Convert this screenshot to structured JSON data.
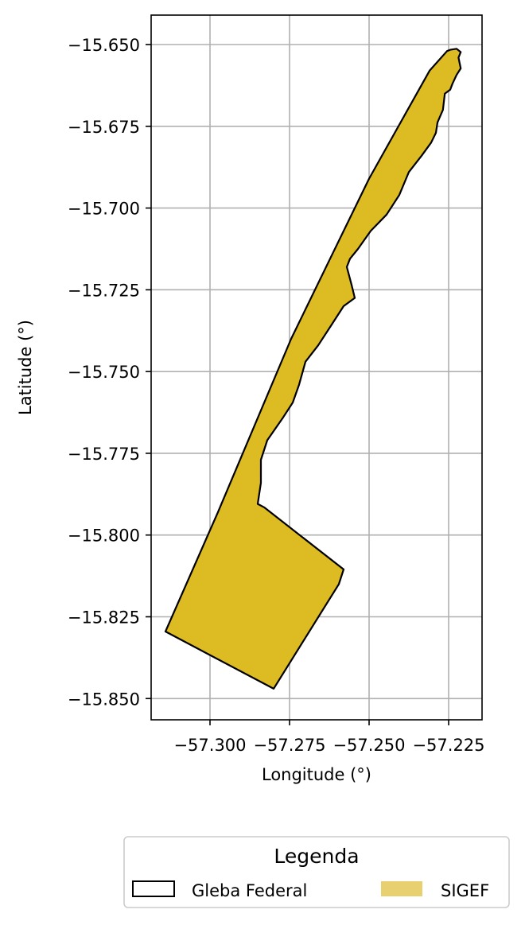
{
  "chart_data": {
    "type": "map",
    "xlabel": "Longitude (°)",
    "ylabel": "Latitude (°)",
    "xlim": [
      -57.3185,
      -57.2145
    ],
    "ylim": [
      -15.8565,
      -15.641
    ],
    "grid": true,
    "x_ticks": [
      {
        "value": -57.3,
        "label": "−57.300"
      },
      {
        "value": -57.275,
        "label": "−57.275"
      },
      {
        "value": -57.25,
        "label": "−57.250"
      },
      {
        "value": -57.225,
        "label": "−57.225"
      }
    ],
    "y_ticks": [
      {
        "value": -15.65,
        "label": "−15.650"
      },
      {
        "value": -15.675,
        "label": "−15.675"
      },
      {
        "value": -15.7,
        "label": "−15.700"
      },
      {
        "value": -15.725,
        "label": "−15.725"
      },
      {
        "value": -15.75,
        "label": "−15.750"
      },
      {
        "value": -15.775,
        "label": "−15.775"
      },
      {
        "value": -15.8,
        "label": "−15.800"
      },
      {
        "value": -15.825,
        "label": "−15.825"
      },
      {
        "value": -15.85,
        "label": "−15.850"
      }
    ],
    "layers": [
      {
        "name": "SIGEF",
        "type": "polygon",
        "fill": "#ddbb22",
        "stroke": "#000000",
        "coordinates": [
          [
            -57.2245,
            -15.6516
          ],
          [
            -57.2225,
            -15.6513
          ],
          [
            -57.2212,
            -15.6523
          ],
          [
            -57.2219,
            -15.654
          ],
          [
            -57.2212,
            -15.6573
          ],
          [
            -57.2225,
            -15.6593
          ],
          [
            -57.2238,
            -15.662
          ],
          [
            -57.2245,
            -15.6638
          ],
          [
            -57.2262,
            -15.665
          ],
          [
            -57.2268,
            -15.67
          ],
          [
            -57.2285,
            -15.6738
          ],
          [
            -57.229,
            -15.677
          ],
          [
            -57.2305,
            -15.68
          ],
          [
            -57.2335,
            -15.684
          ],
          [
            -57.2375,
            -15.689
          ],
          [
            -57.2405,
            -15.696
          ],
          [
            -57.2445,
            -15.702
          ],
          [
            -57.2495,
            -15.707
          ],
          [
            -57.2535,
            -15.7125
          ],
          [
            -57.256,
            -15.7155
          ],
          [
            -57.257,
            -15.718
          ],
          [
            -57.2555,
            -15.7235
          ],
          [
            -57.2545,
            -15.7275
          ],
          [
            -57.258,
            -15.73
          ],
          [
            -57.262,
            -15.736
          ],
          [
            -57.266,
            -15.742
          ],
          [
            -57.27,
            -15.747
          ],
          [
            -57.272,
            -15.754
          ],
          [
            -57.274,
            -15.7595
          ],
          [
            -57.277,
            -15.764
          ],
          [
            -57.282,
            -15.771
          ],
          [
            -57.284,
            -15.777
          ],
          [
            -57.284,
            -15.784
          ],
          [
            -57.285,
            -15.7905
          ],
          [
            -57.283,
            -15.7915
          ],
          [
            -57.258,
            -15.8105
          ],
          [
            -57.2595,
            -15.815
          ],
          [
            -57.28,
            -15.847
          ],
          [
            -57.314,
            -15.8295
          ],
          [
            -57.2975,
            -15.793
          ],
          [
            -57.2745,
            -15.74
          ],
          [
            -57.262,
            -15.715
          ],
          [
            -57.25,
            -15.691
          ],
          [
            -57.231,
            -15.658
          ],
          [
            -57.2255,
            -15.652
          ]
        ]
      },
      {
        "name": "Gleba Federal",
        "type": "polygon-outline",
        "stroke": "#000000"
      }
    ],
    "legend": {
      "title": "Legenda",
      "placement": "bottom-center",
      "entries": [
        {
          "label": "Gleba Federal",
          "style": "outline",
          "fill": "#ffffff",
          "edge": "#000000"
        },
        {
          "label": "SIGEF",
          "style": "filled",
          "fill": "#e8d070",
          "edge": "none"
        }
      ]
    }
  }
}
